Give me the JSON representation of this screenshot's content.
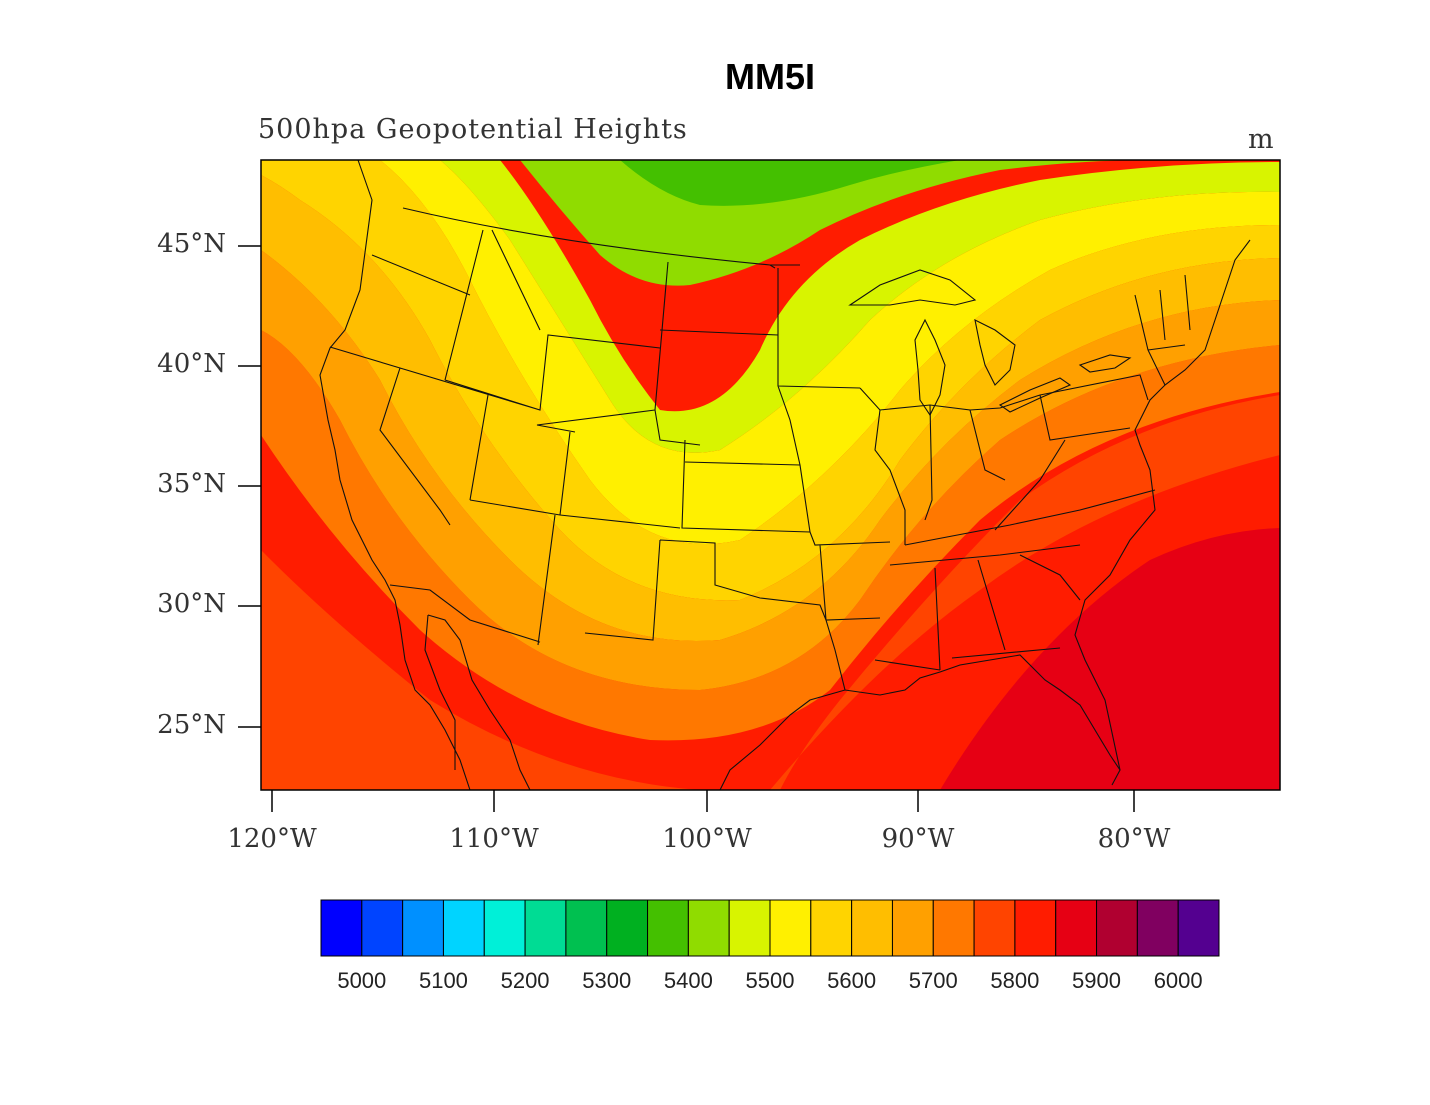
{
  "title": "MM5I",
  "subtitle": "500hpa Geopotential Heights",
  "units": "m",
  "chart_data": {
    "type": "heatmap",
    "variable": "500hpa Geopotential Heights",
    "units": "m",
    "x_ticks": [
      "120°W",
      "110°W",
      "100°W",
      "90°W",
      "80°W"
    ],
    "y_ticks": [
      "45°N",
      "40°N",
      "35°N",
      "30°N",
      "25°N"
    ],
    "colorbar": {
      "levels": [
        5000,
        5050,
        5100,
        5150,
        5200,
        5250,
        5300,
        5350,
        5400,
        5450,
        5500,
        5550,
        5600,
        5650,
        5700,
        5750,
        5800,
        5850,
        5900,
        5950,
        6000
      ],
      "tick_labels": [
        "5000",
        "5100",
        "5200",
        "5300",
        "5400",
        "5500",
        "5600",
        "5700",
        "5800",
        "5900",
        "6000"
      ],
      "colors": [
        "#0000ff",
        "#0044ff",
        "#0090ff",
        "#00d4ff",
        "#00f0d8",
        "#00dc94",
        "#00c050",
        "#00b020",
        "#44c000",
        "#90dc00",
        "#d8f400",
        "#fff000",
        "#ffd400",
        "#ffbe00",
        "#ffa000",
        "#ff7800",
        "#ff4400",
        "#ff1c00",
        "#e60014",
        "#b00030",
        "#800060",
        "#540090"
      ]
    },
    "field_summary": {
      "min_band": "5400-5450 (northern border, Montana/North Dakota/Manitoba)",
      "max_band": "5850-5900 (Southeast US, Florida, Gulf)",
      "gradient": "heights increase from north-central US toward the south, southeast and southwest"
    }
  }
}
